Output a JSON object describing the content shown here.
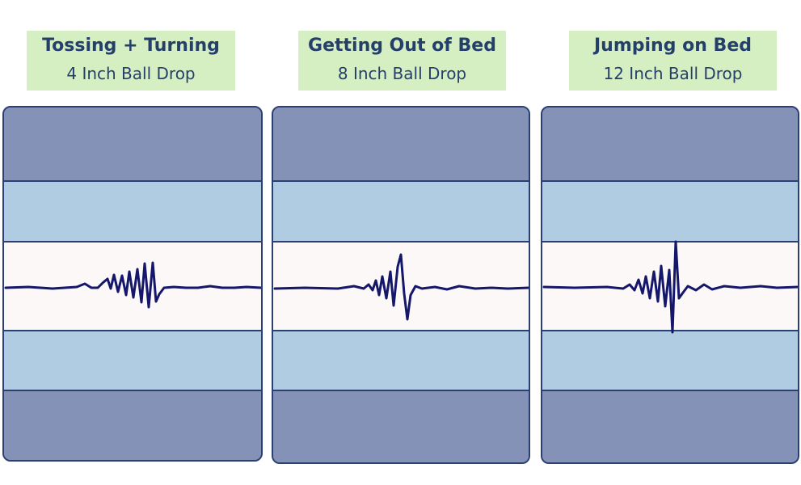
{
  "panels": [
    {
      "title": "Tossing + Turning",
      "subtitle": "4 Inch Ball Drop"
    },
    {
      "title": "Getting Out of Bed",
      "subtitle": "8 Inch Ball Drop"
    },
    {
      "title": "Jumping on Bed",
      "subtitle": "12 Inch Ball Drop"
    }
  ],
  "colors": {
    "label_bg": "#d5efc3",
    "label_text": "#253f6b",
    "outer_band": "#8592b7",
    "inner_band": "#b0cce2",
    "center_band": "#fcf8f7",
    "outline": "#2b3f72",
    "waveform": "#14176a"
  }
}
